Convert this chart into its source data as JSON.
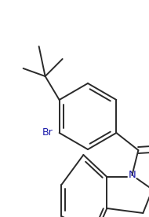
{
  "background_color": "#ffffff",
  "line_color": "#2a2a2a",
  "line_width": 1.4,
  "figsize": [
    1.9,
    2.76
  ],
  "dpi": 100,
  "xlim": [
    0,
    190
  ],
  "ylim": [
    0,
    276
  ]
}
